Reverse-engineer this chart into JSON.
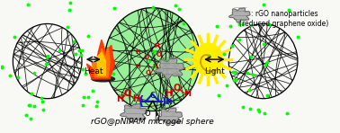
{
  "bg_color": "#f8f8f5",
  "title": "rGO@pNIPAM microgel sphere",
  "legend_text1": ": rGO nanoparticles",
  "legend_text2": "(reduced graphene oxide)",
  "heat_label": "Heat",
  "light_label": "Light",
  "green_dot_color": "#00ff00",
  "sphere_fill_color": "#90ee90",
  "pnipam_blue": "#1a1acc",
  "ho_red": "#cc0000",
  "sun_yellow": "#ffee00",
  "sun_spiral": "#cc9900",
  "flame_outer": "#ff3300",
  "flame_mid": "#ff7700",
  "flame_inner": "#ffcc00"
}
